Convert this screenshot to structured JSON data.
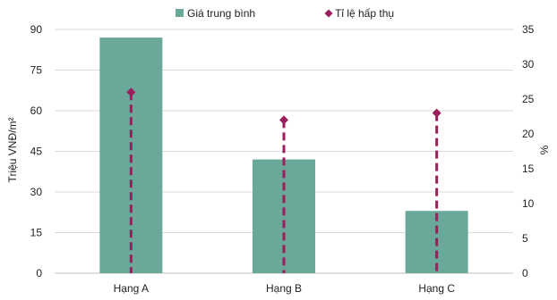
{
  "chart_data": {
    "type": "bar",
    "categories": [
      "Hạng A",
      "Hạng B",
      "Hạng C"
    ],
    "series": [
      {
        "name": "Giá trung bình",
        "type": "bar",
        "axis": "left",
        "values": [
          87,
          42,
          23
        ],
        "color": "#6aa999"
      },
      {
        "name": "Tỉ lệ hấp thụ",
        "type": "dropline-scatter",
        "axis": "right",
        "values": [
          26,
          22,
          23
        ],
        "color": "#9b1d5b"
      }
    ],
    "ylabel": "Triệu VNĐ/m²",
    "y2label": "%",
    "ylim": [
      0,
      90
    ],
    "y2lim": [
      0,
      35
    ],
    "yticks": [
      "0",
      "15",
      "30",
      "45",
      "60",
      "75",
      "90"
    ],
    "y2ticks": [
      "0",
      "5",
      "10",
      "15",
      "20",
      "25",
      "30",
      "35"
    ],
    "grid": true,
    "legend_position": "top"
  }
}
